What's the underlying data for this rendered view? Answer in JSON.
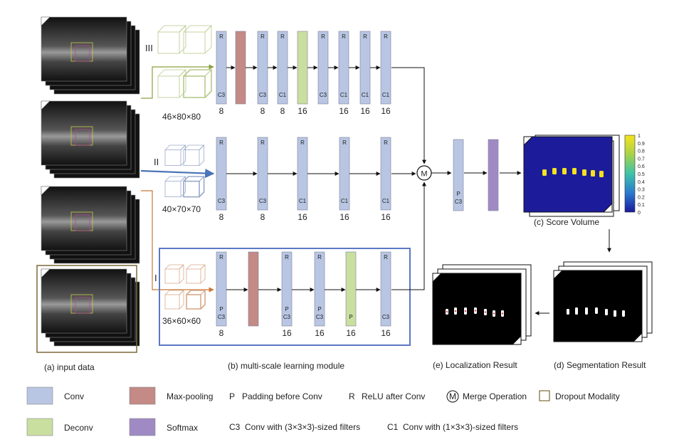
{
  "branches": [
    {
      "label": "III",
      "size": "46×80×80",
      "blocks": [
        {
          "type": "conv",
          "top": "R",
          "bottom": "C3",
          "num": "8"
        },
        {
          "type": "maxpool",
          "top": "",
          "bottom": "",
          "num": ""
        },
        {
          "type": "conv",
          "top": "R",
          "bottom": "C3",
          "num": "8"
        },
        {
          "type": "conv",
          "top": "R",
          "bottom": "C1",
          "num": "8"
        },
        {
          "type": "deconv",
          "top": "",
          "bottom": "",
          "num": "16"
        },
        {
          "type": "conv",
          "top": "R",
          "bottom": "C3",
          "num": ""
        },
        {
          "type": "conv",
          "top": "R",
          "bottom": "C1",
          "num": "16"
        },
        {
          "type": "conv",
          "top": "R",
          "bottom": "C1",
          "num": "16"
        },
        {
          "type": "conv",
          "top": "R",
          "bottom": "C1",
          "num": "16"
        }
      ]
    },
    {
      "label": "II",
      "size": "40×70×70",
      "blocks": [
        {
          "type": "conv",
          "top": "R",
          "bottom": "C3",
          "num": "8"
        },
        {
          "type": "conv",
          "top": "R",
          "bottom": "C3",
          "num": "8"
        },
        {
          "type": "conv",
          "top": "R",
          "bottom": "C1",
          "num": "16"
        },
        {
          "type": "conv",
          "top": "R",
          "bottom": "C1",
          "num": "16"
        },
        {
          "type": "conv",
          "top": "R",
          "bottom": "C1",
          "num": "16"
        }
      ]
    },
    {
      "label": "I",
      "size": "36×60×60",
      "blocks": [
        {
          "type": "conv",
          "top": "R",
          "bottom": "P\nC3",
          "num": "8"
        },
        {
          "type": "maxpool",
          "top": "",
          "bottom": "",
          "num": ""
        },
        {
          "type": "conv",
          "top": "R",
          "bottom": "P\nC3",
          "num": "16"
        },
        {
          "type": "conv",
          "top": "R",
          "bottom": "P\nC3",
          "num": "16"
        },
        {
          "type": "deconv",
          "top": "",
          "bottom": "P",
          "num": "16"
        },
        {
          "type": "conv",
          "top": "R",
          "bottom": "C3",
          "num": "16"
        }
      ]
    }
  ],
  "merge": {
    "symbol": "M"
  },
  "post_blocks": [
    {
      "type": "conv",
      "top": "",
      "bottom": "P\nC3"
    },
    {
      "type": "softmax",
      "top": "",
      "bottom": ""
    }
  ],
  "colorbar": {
    "ticks": [
      "1",
      "0.9",
      "0.8",
      "0.7",
      "0.6",
      "0.5",
      "0.4",
      "0.3",
      "0.2",
      "0.1",
      "0"
    ]
  },
  "captions": {
    "input": "(a)  input data",
    "module": "(b)  multi-scale learning module",
    "score": "(c) Score Volume",
    "segmentation": "(d) Segmentation Result",
    "localization": "(e) Localization Result"
  },
  "legend": [
    {
      "kind": "swatch",
      "color": "#b8c6e3",
      "text": "Conv"
    },
    {
      "kind": "swatch",
      "color": "#c9df9f",
      "text": "Deconv"
    },
    {
      "kind": "swatch",
      "color": "#c48a86",
      "text": "Max-pooling"
    },
    {
      "kind": "swatch",
      "color": "#a08ac4",
      "text": "Softmax"
    },
    {
      "kind": "abbr",
      "symbol": "P",
      "text": "Padding before Conv"
    },
    {
      "kind": "abbr",
      "symbol": "R",
      "text": "ReLU after Conv"
    },
    {
      "kind": "circle",
      "symbol": "M",
      "text": "Merge Operation"
    },
    {
      "kind": "square",
      "text": "Dropout Modality"
    },
    {
      "kind": "abbr",
      "symbol": "C3",
      "text": "Conv with (3×3×3)-sized filters"
    },
    {
      "kind": "abbr",
      "symbol": "C1",
      "text": "Conv with (1×3×3)-sized filters"
    }
  ],
  "colors": {
    "conv": "#b8c6e3",
    "deconv": "#c9df9f",
    "maxpool": "#c48a86",
    "softmax": "#a08ac4",
    "branch3": "#8aa13c",
    "branch2": "#4a74b8",
    "branch1": "#c8783a",
    "frame": "#5b78c4"
  }
}
